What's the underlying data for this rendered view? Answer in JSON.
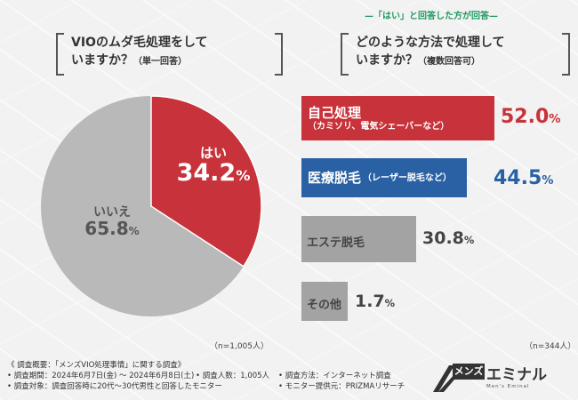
{
  "header_note": "—「はい」と回答した方が回答—",
  "colors": {
    "red": "#c8323a",
    "blue": "#2a61a4",
    "gray": "#a3a3a3",
    "pie_gray": "#b9b9b9"
  },
  "chart_data": [
    {
      "type": "pie",
      "title_line1": "VIOのムダ毛処理をして",
      "title_line2": "いますか？",
      "subtitle": "（単一回答）",
      "slices": [
        {
          "label": "はい",
          "value": 34.2,
          "display": "34.2",
          "unit": "%"
        },
        {
          "label": "いいえ",
          "value": 65.8,
          "display": "65.8",
          "unit": "%"
        }
      ],
      "n": "（n=1,005人）"
    },
    {
      "type": "bar",
      "title_line1": "どのような方法で処理して",
      "title_line2": "いますか？",
      "subtitle": "（複数回答可）",
      "max": 52.0,
      "bars": [
        {
          "label": "自己処理",
          "note": "（カミソリ、電気シェーバーなど）",
          "value": 52.0,
          "display": "52.0",
          "unit": "%"
        },
        {
          "label": "医療脱毛",
          "note": "（レーザー脱毛など）",
          "value": 44.5,
          "display": "44.5",
          "unit": "%"
        },
        {
          "label": "エステ脱毛",
          "note": "",
          "value": 30.8,
          "display": "30.8",
          "unit": "%"
        },
        {
          "label": "その他",
          "note": "",
          "value": 1.7,
          "display": "1.7",
          "unit": "%"
        }
      ],
      "n": "（n=344人）"
    }
  ],
  "footer": {
    "line1": "《 調査概要：「メンズVIO処理事情」に関する調査》",
    "period": "• 調査期間：2024年6月7日(金) 〜 2024年6月8日(土)",
    "people": "• 調査人数：1,005人",
    "method": "• 調査方法：インターネット調査",
    "target": "• 調査対象：調査回答時に20代〜30代男性と回答したモニター",
    "provider": "• モニター提供元：PRIZMAリサーチ"
  },
  "logo": {
    "mens": "メンズ",
    "name": "エミナル",
    "tagline": "Men's Eminal"
  }
}
